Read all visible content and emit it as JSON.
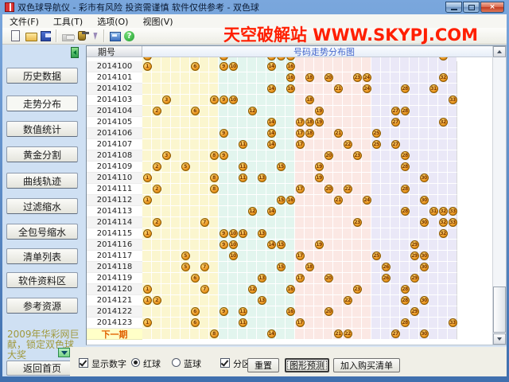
{
  "window": {
    "title": "双色球导航仪 - 彩市有风险 投资需谨慎 软件仅供参考 -  双色球",
    "controls": {
      "minimize": "minimize",
      "maximize": "maximize",
      "close": "×"
    }
  },
  "menu": {
    "items": [
      "文件(F)",
      "工具(T)",
      "选项(O)",
      "视图(V)"
    ]
  },
  "toolbar": {
    "icons": [
      "new-file",
      "open-folder",
      "save",
      "print",
      "delete-jar",
      "lightning",
      "chart-window",
      "help"
    ],
    "help_glyph": "?"
  },
  "watermark": "天空破解站 WWW.SKYPJ.COM",
  "sidebar": {
    "items": [
      "历史数据",
      "走势分布",
      "数值统计",
      "黄金分割",
      "曲线轨迹",
      "过滤缩水",
      "全包号缩水",
      "清单列表",
      "软件资料区",
      "参考资源"
    ],
    "active_item": "走势分布",
    "promo": "2009年华彩网巨献，锁定双色球大奖",
    "home_label": "返回首页"
  },
  "chart": {
    "corner_header": "期号",
    "title": "号码走势分布图",
    "columns": 33,
    "zones": [
      {
        "from": 1,
        "to": 8,
        "name": "zone-1"
      },
      {
        "from": 9,
        "to": 16,
        "name": "zone-2"
      },
      {
        "from": 17,
        "to": 24,
        "name": "zone-3"
      },
      {
        "from": 25,
        "to": 33,
        "name": "zone-4"
      }
    ],
    "partial_top_row_balls": [
      1,
      9,
      14,
      15,
      16,
      32
    ],
    "rows": [
      {
        "period": "2014100",
        "balls": [
          1,
          6,
          9,
          10,
          14,
          16
        ]
      },
      {
        "period": "2014101",
        "balls": [
          16,
          18,
          20,
          23,
          24,
          32
        ]
      },
      {
        "period": "2014102",
        "balls": [
          14,
          16,
          21,
          24,
          28,
          31
        ]
      },
      {
        "period": "2014103",
        "balls": [
          3,
          8,
          9,
          10,
          18,
          33
        ]
      },
      {
        "period": "2014104",
        "balls": [
          2,
          6,
          12,
          19,
          27,
          28
        ]
      },
      {
        "period": "2014105",
        "balls": [
          14,
          17,
          18,
          19,
          27,
          32
        ]
      },
      {
        "period": "2014106",
        "balls": [
          9,
          14,
          17,
          18,
          21,
          25
        ]
      },
      {
        "period": "2014107",
        "balls": [
          11,
          14,
          17,
          22,
          25,
          27
        ]
      },
      {
        "period": "2014108",
        "balls": [
          3,
          8,
          9,
          20,
          23,
          28
        ]
      },
      {
        "period": "2014109",
        "balls": [
          2,
          5,
          11,
          15,
          19,
          28
        ]
      },
      {
        "period": "2014110",
        "balls": [
          1,
          8,
          11,
          13,
          19,
          30
        ]
      },
      {
        "period": "2014111",
        "balls": [
          2,
          8,
          17,
          20,
          22,
          28
        ]
      },
      {
        "period": "2014112",
        "balls": [
          1,
          15,
          16,
          21,
          24,
          30
        ]
      },
      {
        "period": "2014113",
        "balls": [
          12,
          14,
          28,
          31,
          32,
          33
        ]
      },
      {
        "period": "2014114",
        "balls": [
          2,
          7,
          23,
          30,
          32,
          33
        ]
      },
      {
        "period": "2014115",
        "balls": [
          1,
          9,
          10,
          11,
          13,
          32
        ]
      },
      {
        "period": "2014116",
        "balls": [
          9,
          10,
          14,
          15,
          19,
          29
        ]
      },
      {
        "period": "2014117",
        "balls": [
          5,
          10,
          17,
          25,
          29,
          30
        ]
      },
      {
        "period": "2014118",
        "balls": [
          5,
          7,
          15,
          18,
          26,
          30
        ]
      },
      {
        "period": "2014119",
        "balls": [
          6,
          13,
          17,
          20,
          26,
          29
        ]
      },
      {
        "period": "2014120",
        "balls": [
          1,
          7,
          12,
          16,
          23,
          28
        ]
      },
      {
        "period": "2014121",
        "balls": [
          1,
          2,
          13,
          22,
          28,
          30
        ]
      },
      {
        "period": "2014122",
        "balls": [
          6,
          9,
          11,
          16,
          20,
          29
        ]
      },
      {
        "period": "2014123",
        "balls": [
          1,
          6,
          11,
          17,
          28,
          33
        ]
      }
    ],
    "next_row": {
      "label": "下一期",
      "balls": [
        8,
        14,
        21,
        22,
        27,
        30
      ]
    }
  },
  "footer": {
    "show_numbers_label": "显示数字",
    "show_numbers_checked": true,
    "red_ball_label": "红球",
    "red_ball_selected": true,
    "blue_ball_label": "蓝球",
    "blue_ball_selected": false,
    "zone_display_label": "分区显示",
    "zone_display_checked": true,
    "buttons": [
      {
        "label": "重置",
        "focused": false
      },
      {
        "label": "图形预测",
        "focused": true
      },
      {
        "label": "加入购买清单",
        "focused": false
      }
    ]
  },
  "colors": {
    "titlebar_light": "#7aa7dd",
    "frame_blue": "#3f6fae",
    "client_bg": "#d7e4f3",
    "sidebar_bg": "#cfe0f3",
    "zone_yellow": "#fbf6cf",
    "zone_cyan": "#e2f5ee",
    "zone_pink": "#fbe8e4",
    "zone_lavender": "#eae8f7",
    "ball_gold": "#f2a93b",
    "ball_border": "#8a5a00",
    "ball_text": "#7a3800",
    "chart_title_blue": "#4466cc",
    "watermark_red": "#ff1f00",
    "next_label_bg": "#ffffc8",
    "next_label_color": "#e06000",
    "promo_olive": "#a0993d"
  }
}
